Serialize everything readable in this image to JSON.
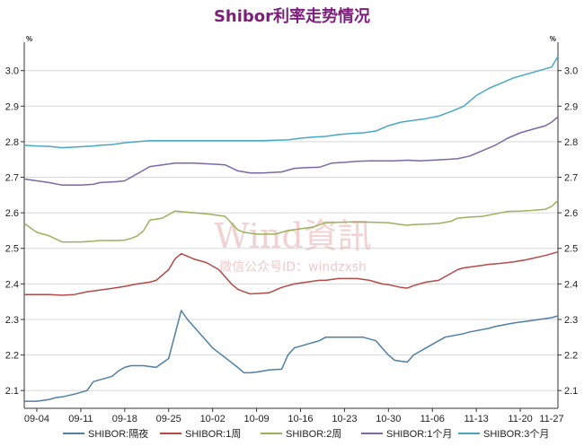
{
  "chart_data": {
    "type": "line",
    "title": "Shibor利率走势情况",
    "unit": "%",
    "ylim": [
      2.05,
      3.08
    ],
    "yticks": [
      2.1,
      2.2,
      2.3,
      2.4,
      2.5,
      2.6,
      2.7,
      2.8,
      2.9,
      3.0
    ],
    "ytick_labels": [
      "2.1",
      "2.2",
      "2.3",
      "2.4",
      "2.5",
      "2.6",
      "2.7",
      "2.8",
      "2.9",
      "3.0"
    ],
    "xlim": [
      0,
      85
    ],
    "xtick_positions": [
      2,
      9,
      16,
      23,
      30,
      37,
      44,
      51,
      58,
      65,
      72,
      79,
      86
    ],
    "xlabel_positions": [
      2,
      9,
      16,
      23,
      30,
      37,
      44,
      51,
      58,
      65,
      72,
      79,
      84
    ],
    "xlabels": [
      "09-04",
      "09-11",
      "09-18",
      "09-25",
      "10-02",
      "10-09",
      "10-16",
      "10-23",
      "10-30",
      "11-06",
      "11-13",
      "11-20",
      "11-27"
    ],
    "grid": true,
    "legend_position": "bottom",
    "series": [
      {
        "name": "SHIBOR:隔夜",
        "color": "#4f7fa5",
        "x": [
          0,
          2,
          4,
          5,
          6,
          8,
          10,
          11,
          14,
          15,
          16,
          17,
          19,
          21,
          23,
          25,
          26,
          30,
          34,
          35,
          36,
          37,
          39,
          41,
          42,
          43,
          45,
          47,
          48,
          51,
          53,
          54,
          56,
          57,
          58,
          59,
          61,
          62,
          63,
          64,
          65,
          66,
          67,
          70,
          71,
          74,
          75,
          78,
          80,
          82,
          84,
          85
        ],
        "values": [
          2.07,
          2.07,
          2.075,
          2.08,
          2.082,
          2.09,
          2.1,
          2.125,
          2.14,
          2.155,
          2.165,
          2.17,
          2.17,
          2.165,
          2.19,
          2.325,
          2.3,
          2.22,
          2.165,
          2.15,
          2.15,
          2.152,
          2.158,
          2.16,
          2.2,
          2.22,
          2.23,
          2.24,
          2.25,
          2.25,
          2.25,
          2.25,
          2.24,
          2.22,
          2.2,
          2.185,
          2.18,
          2.2,
          2.21,
          2.22,
          2.23,
          2.24,
          2.25,
          2.26,
          2.265,
          2.275,
          2.28,
          2.29,
          2.295,
          2.3,
          2.305,
          2.31
        ]
      },
      {
        "name": "SHIBOR:1周",
        "color": "#b34a46",
        "x": [
          0,
          2,
          4,
          6,
          8,
          10,
          11,
          15,
          16,
          18,
          20,
          21,
          23,
          24,
          25,
          27,
          29,
          31,
          33,
          34,
          35,
          36,
          37,
          39,
          41,
          43,
          45,
          47,
          48,
          50,
          51,
          53,
          55,
          56,
          57,
          58,
          60,
          61,
          62,
          64,
          66,
          67,
          68,
          69,
          70,
          72,
          74,
          76,
          78,
          80,
          83,
          85
        ],
        "values": [
          2.37,
          2.37,
          2.37,
          2.368,
          2.37,
          2.378,
          2.38,
          2.39,
          2.393,
          2.4,
          2.405,
          2.41,
          2.44,
          2.47,
          2.485,
          2.47,
          2.46,
          2.44,
          2.4,
          2.385,
          2.378,
          2.372,
          2.373,
          2.375,
          2.39,
          2.4,
          2.405,
          2.41,
          2.41,
          2.415,
          2.415,
          2.415,
          2.41,
          2.405,
          2.4,
          2.398,
          2.39,
          2.388,
          2.395,
          2.405,
          2.41,
          2.42,
          2.43,
          2.44,
          2.445,
          2.45,
          2.455,
          2.458,
          2.462,
          2.468,
          2.48,
          2.49
        ]
      },
      {
        "name": "SHIBOR:2周",
        "color": "#9bb15c",
        "x": [
          0,
          2,
          4,
          6,
          9,
          11,
          12,
          15,
          16,
          17,
          18,
          19,
          20,
          21,
          22,
          23,
          24,
          27,
          29,
          30,
          32,
          34,
          35,
          37,
          38,
          40,
          42,
          44,
          46,
          48,
          50,
          52,
          54,
          56,
          58,
          60,
          61,
          62,
          64,
          66,
          68,
          69,
          71,
          73,
          75,
          77,
          79,
          81,
          83,
          84,
          85
        ],
        "values": [
          2.57,
          2.545,
          2.535,
          2.518,
          2.518,
          2.52,
          2.522,
          2.522,
          2.523,
          2.528,
          2.535,
          2.55,
          2.58,
          2.582,
          2.585,
          2.595,
          2.605,
          2.6,
          2.597,
          2.595,
          2.59,
          2.552,
          2.545,
          2.54,
          2.54,
          2.54,
          2.55,
          2.555,
          2.56,
          2.572,
          2.573,
          2.574,
          2.574,
          2.573,
          2.572,
          2.567,
          2.565,
          2.567,
          2.568,
          2.57,
          2.576,
          2.585,
          2.588,
          2.59,
          2.597,
          2.604,
          2.605,
          2.607,
          2.61,
          2.618,
          2.635
        ]
      },
      {
        "name": "SHIBOR:1个月",
        "color": "#7b68a6",
        "x": [
          0,
          2,
          4,
          6,
          9,
          11,
          12,
          15,
          16,
          18,
          20,
          22,
          24,
          27,
          29,
          31,
          32,
          34,
          36,
          38,
          39,
          41,
          43,
          45,
          47,
          49,
          51,
          53,
          55,
          57,
          59,
          61,
          63,
          65,
          67,
          69,
          71,
          73,
          75,
          77,
          79,
          81,
          83,
          84,
          85
        ],
        "values": [
          2.695,
          2.69,
          2.685,
          2.678,
          2.678,
          2.68,
          2.685,
          2.688,
          2.69,
          2.71,
          2.73,
          2.735,
          2.74,
          2.74,
          2.738,
          2.736,
          2.735,
          2.718,
          2.712,
          2.712,
          2.713,
          2.715,
          2.725,
          2.727,
          2.728,
          2.74,
          2.742,
          2.745,
          2.746,
          2.746,
          2.746,
          2.748,
          2.746,
          2.748,
          2.75,
          2.752,
          2.76,
          2.775,
          2.79,
          2.81,
          2.825,
          2.835,
          2.845,
          2.855,
          2.87
        ]
      },
      {
        "name": "SHIBOR:3个月",
        "color": "#4aa7c4",
        "x": [
          0,
          2,
          4,
          6,
          8,
          11,
          12,
          14,
          16,
          18,
          20,
          22,
          24,
          28,
          30,
          32,
          34,
          36,
          38,
          40,
          42,
          44,
          46,
          48,
          50,
          52,
          54,
          56,
          58,
          60,
          62,
          64,
          66,
          68,
          70,
          72,
          74,
          76,
          78,
          80,
          82,
          84,
          85
        ],
        "values": [
          2.79,
          2.788,
          2.787,
          2.783,
          2.785,
          2.788,
          2.79,
          2.792,
          2.797,
          2.8,
          2.803,
          2.803,
          2.803,
          2.803,
          2.803,
          2.803,
          2.803,
          2.803,
          2.803,
          2.804,
          2.805,
          2.81,
          2.813,
          2.815,
          2.82,
          2.823,
          2.825,
          2.83,
          2.845,
          2.855,
          2.86,
          2.865,
          2.872,
          2.885,
          2.9,
          2.93,
          2.95,
          2.965,
          2.98,
          2.99,
          3.0,
          3.01,
          3.04
        ]
      }
    ]
  },
  "watermark": {
    "main": "Wind資訊",
    "sub": "微信公众号ID：windzxsh"
  }
}
